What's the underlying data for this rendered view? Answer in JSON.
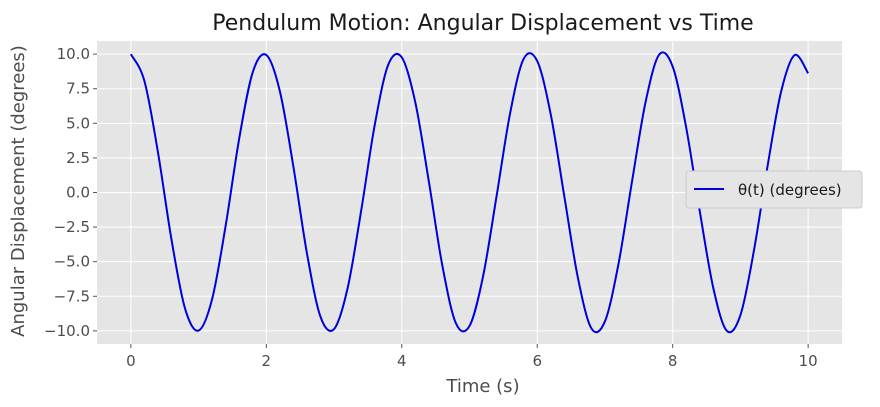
{
  "chart_data": {
    "type": "line",
    "title": "Pendulum Motion: Angular Displacement vs Time",
    "xlabel": "Time (s)",
    "ylabel": "Angular Displacement (degrees)",
    "xlim": [
      -0.5,
      10.5
    ],
    "ylim": [
      -10.95,
      10.95
    ],
    "xticks": [
      0,
      2,
      4,
      6,
      8,
      10
    ],
    "xtick_labels": [
      "0",
      "2",
      "4",
      "6",
      "8",
      "10"
    ],
    "yticks": [
      10.0,
      7.5,
      5.0,
      2.5,
      0.0,
      -2.5,
      -5.0,
      -7.5,
      -10.0
    ],
    "ytick_labels": [
      "10.0",
      "7.5",
      "5.0",
      "2.5",
      "0.0",
      "−2.5",
      "−5.0",
      "−7.5",
      "−10.0"
    ],
    "grid": true,
    "legend_position": "center-right",
    "series": [
      {
        "name": "θ(t) (degrees)",
        "color": "#0000dd",
        "x": [
          0,
          0.2,
          0.4,
          0.6,
          0.8,
          1.0,
          1.2,
          1.4,
          1.6,
          1.8,
          2.0,
          2.2,
          2.4,
          2.6,
          2.8,
          3.0,
          3.2,
          3.4,
          3.6,
          3.8,
          4.0,
          4.2,
          4.4,
          4.6,
          4.8,
          5.0,
          5.2,
          5.4,
          5.6,
          5.8,
          6.0,
          6.2,
          6.4,
          6.6,
          6.8,
          7.0,
          7.2,
          7.4,
          7.6,
          7.8,
          8.0,
          8.2,
          8.4,
          8.6,
          8.8,
          9.0,
          9.2,
          9.4,
          9.6,
          9.8,
          10.0
        ],
        "y": [
          10.0,
          8.06,
          2.91,
          -3.41,
          -8.39,
          -9.98,
          -7.7,
          -2.39,
          3.91,
          8.7,
          9.94,
          7.32,
          1.86,
          -4.4,
          -8.98,
          -9.87,
          -6.92,
          -1.33,
          4.86,
          9.23,
          9.77,
          6.51,
          0.79,
          -5.31,
          -9.46,
          -9.65,
          -6.07,
          -0.26,
          5.74,
          9.66,
          9.5,
          5.63,
          -0.28,
          -6.15,
          -9.82,
          -9.31,
          -5.16,
          0.81,
          6.54,
          9.96,
          9.1,
          4.68,
          -1.35,
          -6.91,
          -10.0,
          -8.87,
          -4.19,
          1.88,
          7.27,
          9.93,
          8.62
        ]
      }
    ]
  }
}
